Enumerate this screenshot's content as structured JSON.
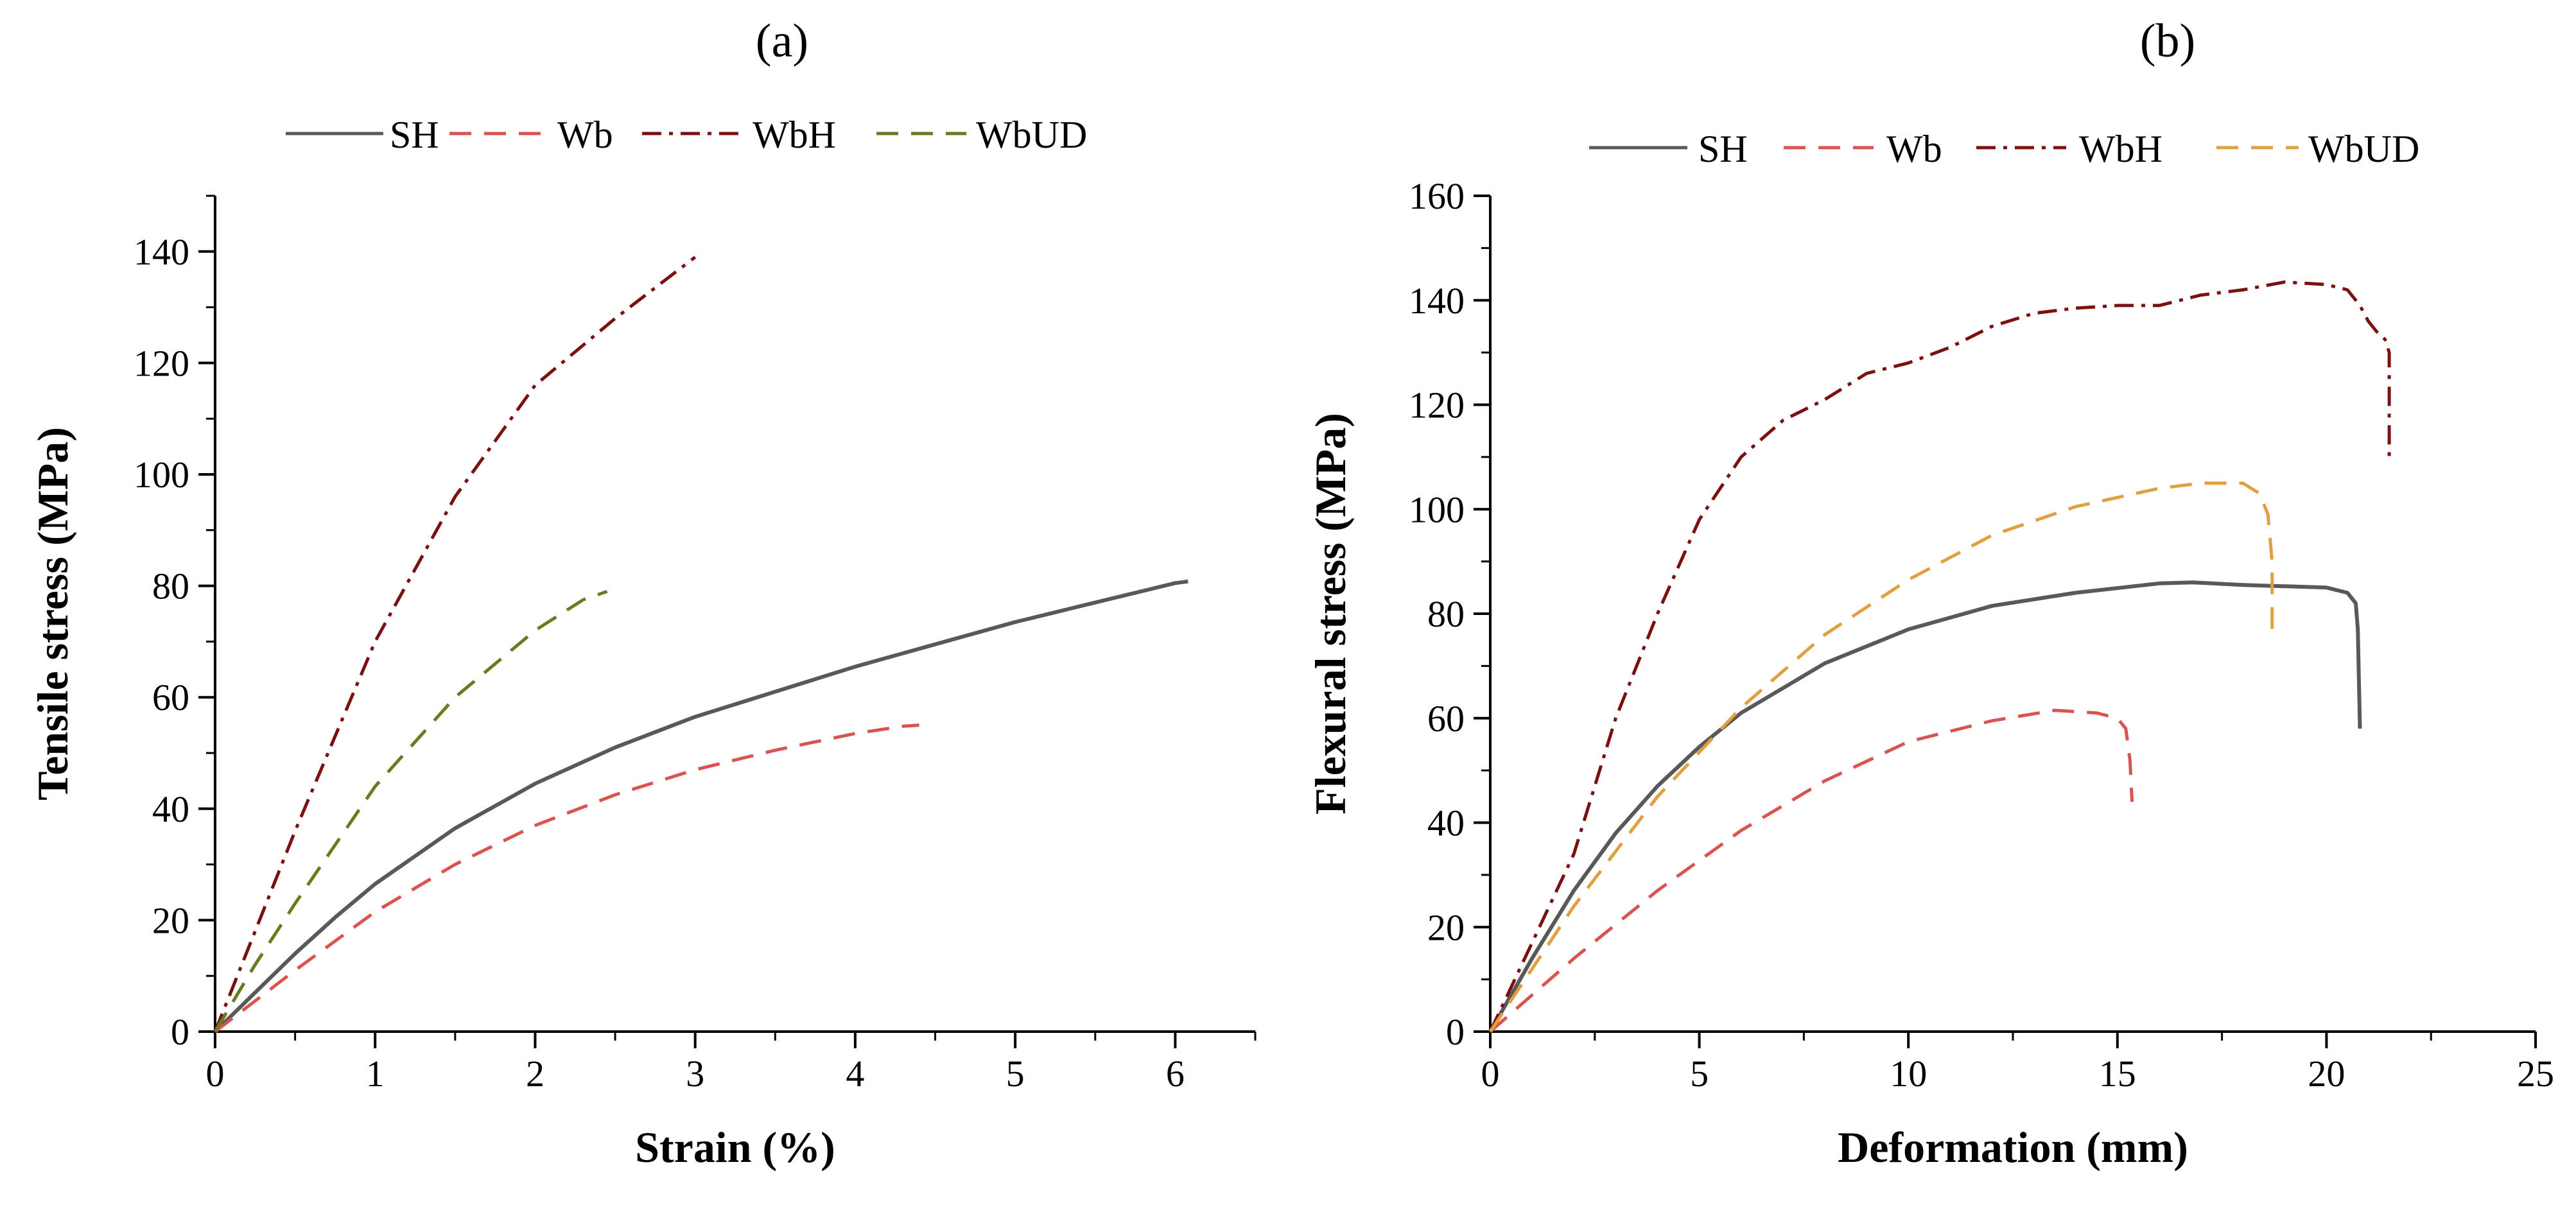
{
  "figure": {
    "panels": [
      "(a)",
      "(b)"
    ]
  },
  "chart_data": [
    {
      "id": "a",
      "type": "line",
      "panel_label": "(a)",
      "xlabel": "Strain (%)",
      "ylabel": "Tensile stress (MPa)",
      "xlim": [
        0,
        6.5
      ],
      "ylim": [
        0,
        150
      ],
      "xticks": [
        0,
        1,
        2,
        3,
        4,
        5,
        6
      ],
      "yticks": [
        0,
        20,
        40,
        60,
        80,
        100,
        120,
        140
      ],
      "x_minor_step": 0.5,
      "y_minor_step": 10,
      "legend": [
        "SH",
        "Wb",
        "WbH",
        "WbUD"
      ],
      "series": [
        {
          "name": "SH",
          "color": "#595959",
          "dash": "solid",
          "x": [
            0,
            0.25,
            0.5,
            0.75,
            1.0,
            1.5,
            2.0,
            2.5,
            3.0,
            3.5,
            4.0,
            4.5,
            5.0,
            5.5,
            6.0,
            6.08
          ],
          "y": [
            0,
            7,
            14,
            20.5,
            26.5,
            36.5,
            44.5,
            51,
            56.5,
            61,
            65.5,
            69.5,
            73.5,
            77,
            80.5,
            80.8
          ]
        },
        {
          "name": "Wb",
          "color": "#d9534f",
          "dash": "dash",
          "x": [
            0,
            0.25,
            0.5,
            1.0,
            1.5,
            2.0,
            2.5,
            3.0,
            3.5,
            4.0,
            4.3,
            4.4
          ],
          "y": [
            0,
            5.5,
            11,
            21.5,
            30,
            37,
            42.5,
            47,
            50.5,
            53.5,
            54.8,
            55
          ]
        },
        {
          "name": "WbH",
          "color": "#7b1010",
          "dash": "dashdot",
          "x": [
            0,
            0.25,
            0.5,
            1.0,
            1.5,
            2.0,
            2.5,
            3.0
          ],
          "y": [
            0,
            18,
            36,
            70,
            96,
            116,
            128,
            139
          ]
        },
        {
          "name": "WbUD",
          "color": "#6b7a1f",
          "dash": "dash",
          "x": [
            0,
            0.25,
            0.5,
            1.0,
            1.5,
            2.0,
            2.3,
            2.45
          ],
          "y": [
            0,
            12,
            23,
            44,
            60,
            72,
            77.5,
            79
          ]
        }
      ]
    },
    {
      "id": "b",
      "type": "line",
      "panel_label": "(b)",
      "xlabel": "Deformation (mm)",
      "ylabel": "Flexural stress (MPa)",
      "xlim": [
        0,
        25
      ],
      "ylim": [
        0,
        160
      ],
      "xticks": [
        0,
        5,
        10,
        15,
        20,
        25
      ],
      "yticks": [
        0,
        20,
        40,
        60,
        80,
        100,
        120,
        140,
        160
      ],
      "x_minor_step": 2.5,
      "y_minor_step": 10,
      "legend": [
        "SH",
        "Wb",
        "WbH",
        "WbUD"
      ],
      "series": [
        {
          "name": "SH",
          "color": "#595959",
          "dash": "solid",
          "x": [
            0,
            1,
            2,
            3,
            4,
            5,
            6,
            8,
            10,
            12,
            14,
            16,
            16.8,
            18,
            20,
            20.5,
            20.7,
            20.75,
            20.8
          ],
          "y": [
            0,
            14,
            27,
            38,
            47,
            54.5,
            61,
            70.5,
            77,
            81.5,
            84,
            85.8,
            86,
            85.5,
            85,
            84,
            82,
            77,
            58
          ]
        },
        {
          "name": "Wb",
          "color": "#d9534f",
          "dash": "dash",
          "x": [
            0,
            1,
            2,
            4,
            6,
            8,
            10,
            12,
            13.5,
            14.5,
            15,
            15.2,
            15.3,
            15.35
          ],
          "y": [
            0,
            7,
            14,
            27,
            38.5,
            48,
            55.5,
            59.5,
            61.5,
            61,
            60,
            58,
            52,
            44
          ]
        },
        {
          "name": "WbH",
          "color": "#7b1010",
          "dash": "dashdot",
          "x": [
            0,
            1,
            2,
            3,
            4,
            5,
            6,
            7,
            8,
            9,
            10,
            11,
            12,
            13,
            14,
            15,
            16,
            17,
            18,
            19,
            20,
            20.5,
            20.8,
            21.0,
            21.2,
            21.4,
            21.5,
            21.5
          ],
          "y": [
            0,
            17,
            34,
            60,
            80,
            98,
            110,
            117,
            121,
            126,
            128,
            131,
            135,
            137.5,
            138.5,
            139,
            139,
            141,
            142,
            143.5,
            143,
            142,
            139,
            136,
            134,
            132.5,
            130,
            110
          ]
        },
        {
          "name": "WbUD",
          "color": "#e0a040",
          "dash": "dash",
          "x": [
            0,
            1,
            2,
            4,
            6,
            8,
            10,
            12,
            14,
            16,
            17,
            18,
            18.4,
            18.6,
            18.7,
            18.7
          ],
          "y": [
            0,
            12,
            24,
            45,
            62,
            76,
            86.5,
            95,
            100.5,
            104,
            105,
            105,
            103,
            99,
            90,
            75
          ]
        }
      ]
    }
  ]
}
